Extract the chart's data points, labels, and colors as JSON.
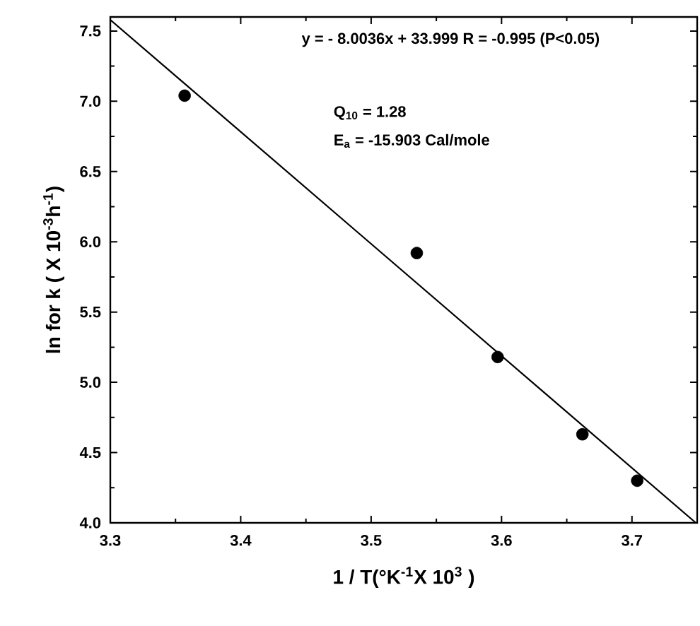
{
  "chart_data": {
    "type": "scatter",
    "xlabel": "1 / T(°K$^{-1}$X 10$^{3}$ )",
    "ylabel": "ln  for k ( X 10$^{-3}$h$^{-1}$)",
    "x": [
      3.357,
      3.535,
      3.597,
      3.662,
      3.704
    ],
    "series": [
      {
        "color": "#000000",
        "marker": "circle",
        "values": [
          7.04,
          5.92,
          5.18,
          4.63,
          4.3
        ]
      },
      {
        "type": "line",
        "color": "#000000",
        "marker": "none",
        "line_style": "solid",
        "x": [
          3.3,
          3.749
        ],
        "values": [
          7.58,
          4.0
        ]
      }
    ],
    "xlim": [
      3.3,
      3.75
    ],
    "ylim": [
      4.0,
      7.6
    ],
    "xticks": [
      3.3,
      3.4,
      3.5,
      3.6,
      3.7
    ],
    "yticks": [
      {
        "value": 4.0,
        "label": "4.0"
      },
      {
        "value": 4.5,
        "label": "4.5"
      },
      {
        "value": 5.0,
        "label": "5.0"
      },
      {
        "value": 5.5,
        "label": "5.5"
      },
      {
        "value": 6.0,
        "label": "6.0"
      },
      {
        "value": 6.5,
        "label": "6.5"
      },
      {
        "value": 7.0,
        "label": "7.0"
      },
      {
        "value": 7.5,
        "label": "7.5"
      }
    ],
    "annotations": [
      "y =  - 8.0036x  + 33.999  R = -0.995 (P<0.05)",
      "Q$_{10}$ = 1.28",
      "E$_{a}$ = -15.903 Cal/mole"
    ]
  }
}
